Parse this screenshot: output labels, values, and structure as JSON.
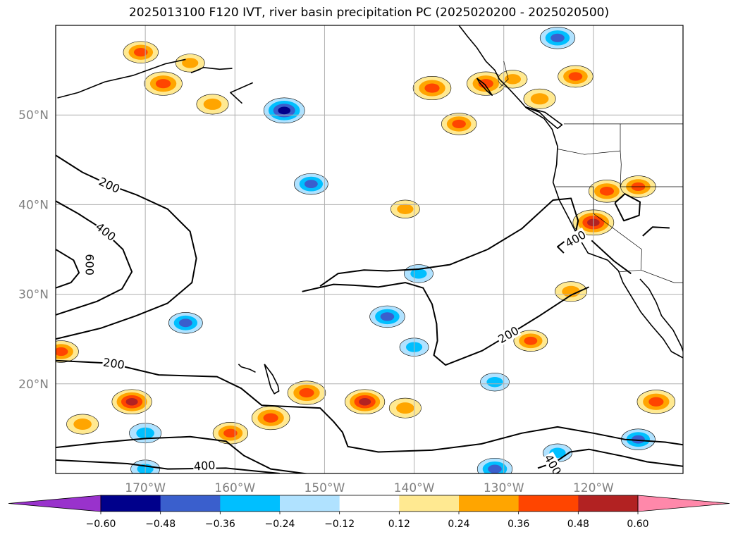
{
  "title": "2025013100 F120 IVT, river basin precipitation PC (2025020200 - 2025020500)",
  "chart_data": {
    "type": "heatmap",
    "title": "2025013100 F120 IVT, river basin precipitation PC (2025020200 - 2025020500)",
    "map": {
      "lon_range": [
        -180,
        -110
      ],
      "lat_range": [
        10,
        60
      ],
      "grid": true,
      "lon_ticks": [
        {
          "value": -170,
          "label": "170°W"
        },
        {
          "value": -160,
          "label": "160°W"
        },
        {
          "value": -150,
          "label": "150°W"
        },
        {
          "value": -140,
          "label": "140°W"
        },
        {
          "value": -130,
          "label": "130°W"
        },
        {
          "value": -120,
          "label": "120°W"
        }
      ],
      "lat_ticks": [
        {
          "value": 50,
          "label": "50°N"
        },
        {
          "value": 40,
          "label": "40°N"
        },
        {
          "value": 30,
          "label": "30°N"
        },
        {
          "value": 20,
          "label": "20°N"
        }
      ]
    },
    "colorbar": {
      "orientation": "horizontal",
      "position": "bottom",
      "extend": "both",
      "levels": [
        -0.6,
        -0.48,
        -0.36,
        -0.24,
        -0.12,
        0.12,
        0.24,
        0.36,
        0.48,
        0.6
      ],
      "tick_labels": [
        "−0.60",
        "−0.48",
        "−0.36",
        "−0.24",
        "−0.12",
        "0.12",
        "0.24",
        "0.36",
        "0.48",
        "0.60"
      ],
      "colors": [
        "#9932cc",
        "#00008b",
        "#3a5fcd",
        "#00bfff",
        "#b0e2ff",
        "#ffffff",
        "#ffe991",
        "#ffa500",
        "#ff4500",
        "#b22222",
        "#ff88aa"
      ]
    },
    "ivt_contours": {
      "levels": [
        200,
        400,
        600
      ],
      "labels": [
        {
          "text": "200",
          "lon": -174,
          "lat": 42.2,
          "angle": 25
        },
        {
          "text": "400",
          "lon": -174.4,
          "lat": 37,
          "angle": 38
        },
        {
          "text": "600",
          "lon": -176.2,
          "lat": 33.3,
          "angle": 90
        },
        {
          "text": "200",
          "lon": -173.5,
          "lat": 22.3,
          "angle": 8
        },
        {
          "text": "400",
          "lon": -163.4,
          "lat": 10.9,
          "angle": -4
        },
        {
          "text": "200",
          "lon": -129.5,
          "lat": 25.5,
          "angle": -30
        },
        {
          "text": "400",
          "lon": -122,
          "lat": 36.2,
          "angle": -30
        },
        {
          "text": "400",
          "lon": -124.5,
          "lat": 11,
          "angle": 60
        }
      ]
    },
    "precip_pc_regions": [
      {
        "lon": -170.5,
        "lat": 57,
        "value": 0.4
      },
      {
        "lon": -168,
        "lat": 53.5,
        "value": 0.45
      },
      {
        "lon": -165,
        "lat": 55.8,
        "value": 0.3
      },
      {
        "lon": -162.5,
        "lat": 51.2,
        "value": 0.35
      },
      {
        "lon": -138,
        "lat": 53,
        "value": 0.45
      },
      {
        "lon": -135,
        "lat": 49,
        "value": 0.4
      },
      {
        "lon": -132,
        "lat": 53.5,
        "value": 0.45
      },
      {
        "lon": -129,
        "lat": 54,
        "value": 0.3
      },
      {
        "lon": -122,
        "lat": 54.3,
        "value": 0.4
      },
      {
        "lon": -126,
        "lat": 51.8,
        "value": 0.35
      },
      {
        "lon": -120,
        "lat": 38,
        "value": 0.5
      },
      {
        "lon": -118.5,
        "lat": 41.5,
        "value": 0.42
      },
      {
        "lon": -115,
        "lat": 42,
        "value": 0.4
      },
      {
        "lon": -141,
        "lat": 39.5,
        "value": 0.3
      },
      {
        "lon": -122.5,
        "lat": 30.3,
        "value": 0.35
      },
      {
        "lon": -127,
        "lat": 24.8,
        "value": 0.38
      },
      {
        "lon": -152,
        "lat": 19,
        "value": 0.45
      },
      {
        "lon": -145.5,
        "lat": 18,
        "value": 0.48
      },
      {
        "lon": -156,
        "lat": 16.2,
        "value": 0.45
      },
      {
        "lon": -160.5,
        "lat": 14.5,
        "value": 0.4
      },
      {
        "lon": -171.5,
        "lat": 18,
        "value": 0.48
      },
      {
        "lon": -177,
        "lat": 15.5,
        "value": 0.35
      },
      {
        "lon": -179.4,
        "lat": 23.6,
        "value": 0.4
      },
      {
        "lon": -113,
        "lat": 18,
        "value": 0.45
      },
      {
        "lon": -141,
        "lat": 17.3,
        "value": 0.35
      }
    ],
    "precip_nc_regions": [
      {
        "lon": -124,
        "lat": 58.6,
        "value": -0.4
      },
      {
        "lon": -154.5,
        "lat": 50.5,
        "value": -0.5
      },
      {
        "lon": -151.5,
        "lat": 42.3,
        "value": -0.38
      },
      {
        "lon": -143,
        "lat": 27.5,
        "value": -0.4
      },
      {
        "lon": -165.5,
        "lat": 26.8,
        "value": -0.38
      },
      {
        "lon": -170,
        "lat": 14.5,
        "value": -0.35
      },
      {
        "lon": -170,
        "lat": 10.5,
        "value": -0.3
      },
      {
        "lon": -115,
        "lat": 13.8,
        "value": -0.38
      },
      {
        "lon": -131,
        "lat": 10.5,
        "value": -0.4
      },
      {
        "lon": -139.5,
        "lat": 32.3,
        "value": -0.3
      },
      {
        "lon": -140,
        "lat": 24.1,
        "value": -0.3
      },
      {
        "lon": -131,
        "lat": 20.2,
        "value": -0.3
      },
      {
        "lon": -124,
        "lat": 12.3,
        "value": -0.3
      }
    ]
  }
}
